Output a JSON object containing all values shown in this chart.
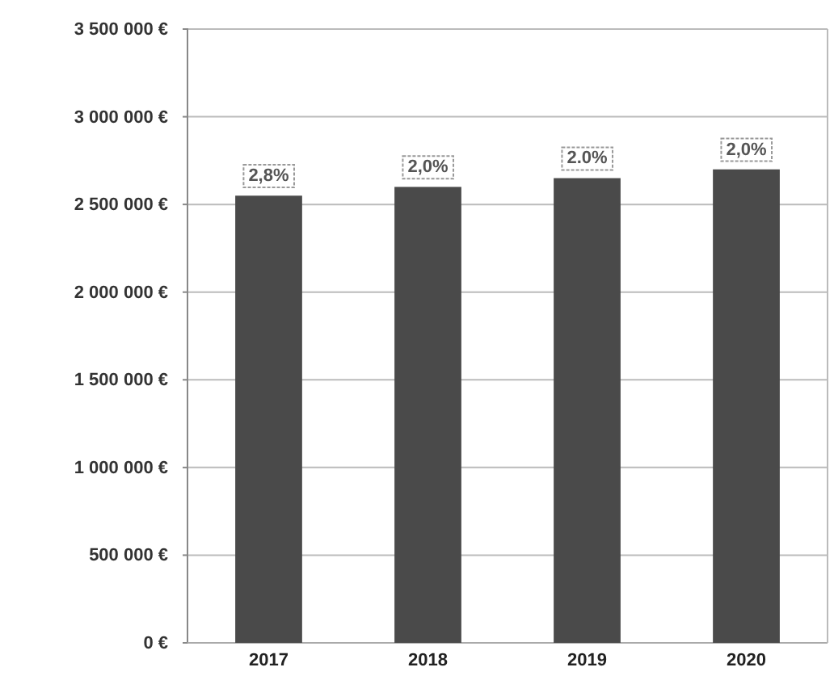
{
  "chart_data": {
    "type": "bar",
    "categories": [
      "2017",
      "2018",
      "2019",
      "2020"
    ],
    "values": [
      2550000,
      2600000,
      2650000,
      2700000
    ],
    "color": "#4a4a4a",
    "ylim": [
      0,
      3500000
    ],
    "yticks": [
      {
        "value": 0,
        "label": "0 €"
      },
      {
        "value": 500000,
        "label": "500 000 €"
      },
      {
        "value": 1000000,
        "label": "1 000 000 €"
      },
      {
        "value": 1500000,
        "label": "1 500 000 €"
      },
      {
        "value": 2000000,
        "label": "2 000 000 €"
      },
      {
        "value": 2500000,
        "label": "2 500 000 €"
      },
      {
        "value": 3000000,
        "label": "3 000 000 €"
      },
      {
        "value": 3500000,
        "label": "3 500 000 €"
      }
    ],
    "grid": "y",
    "annotations": [
      {
        "text": "2,8%",
        "x": "2017",
        "y": 2550000
      },
      {
        "text": "2,0%",
        "x": "2018",
        "y": 2600000
      },
      {
        "text": "2.0%",
        "x": "2019",
        "y": 2650000
      },
      {
        "text": "2,0%",
        "x": "2020",
        "y": 2700000
      }
    ]
  }
}
